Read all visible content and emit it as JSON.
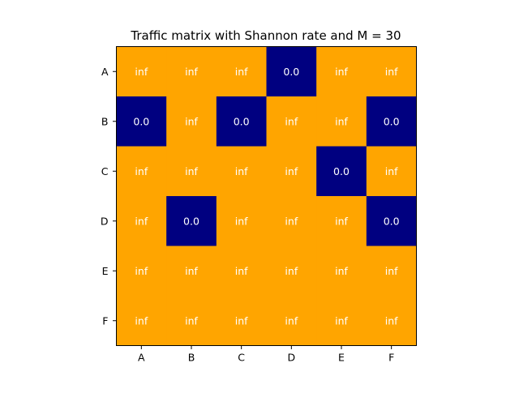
{
  "chart_data": {
    "type": "heatmap",
    "title": "Traffic matrix with Shannon rate and M = 30",
    "xlabel": "",
    "ylabel": "",
    "x_categories": [
      "A",
      "B",
      "C",
      "D",
      "E",
      "F"
    ],
    "y_categories": [
      "A",
      "B",
      "C",
      "D",
      "E",
      "F"
    ],
    "values": [
      [
        "inf",
        "inf",
        "inf",
        "0.0",
        "inf",
        "inf"
      ],
      [
        "0.0",
        "inf",
        "0.0",
        "inf",
        "inf",
        "0.0"
      ],
      [
        "inf",
        "inf",
        "inf",
        "inf",
        "0.0",
        "inf"
      ],
      [
        "inf",
        "0.0",
        "inf",
        "inf",
        "inf",
        "0.0"
      ],
      [
        "inf",
        "inf",
        "inf",
        "inf",
        "inf",
        "inf"
      ],
      [
        "inf",
        "inf",
        "inf",
        "inf",
        "inf",
        "inf"
      ]
    ],
    "colors": {
      "inf": "#ffa500",
      "zero": "#000080",
      "cell_text": "#ffffff",
      "axis": "#000000",
      "background": "#ffffff"
    },
    "grid": false,
    "colorbar": false
  }
}
